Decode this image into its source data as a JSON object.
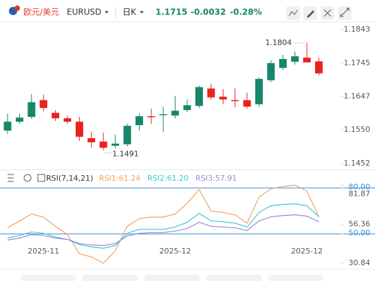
{
  "header": {
    "pair_name": "欧元/美元",
    "symbol": "EURUSD",
    "period": "日K",
    "price": "1.1715",
    "change": "-0.0032",
    "change_pct": "-0.28%"
  },
  "chart_data": [
    {
      "type": "candlestick",
      "open": [
        1.1548,
        1.1574,
        1.1588,
        1.1637,
        1.16,
        1.1584,
        1.1574,
        1.1526,
        1.1516,
        1.1504,
        1.1508,
        1.1564,
        1.159,
        1.1594,
        1.1592,
        1.1608,
        1.162,
        1.1671,
        1.1647,
        1.1637,
        1.1637,
        1.1625,
        1.1695,
        1.1731,
        1.1749,
        1.1761,
        1.175
      ],
      "high": [
        1.1598,
        1.1598,
        1.1655,
        1.1653,
        1.1608,
        1.1592,
        1.1588,
        1.1544,
        1.1542,
        1.1536,
        1.1568,
        1.1598,
        1.1612,
        1.1618,
        1.1649,
        1.1639,
        1.1679,
        1.1685,
        1.1669,
        1.1671,
        1.1659,
        1.1703,
        1.1753,
        1.1769,
        1.1779,
        1.1804,
        1.1761
      ],
      "low": [
        1.1538,
        1.1568,
        1.1582,
        1.1604,
        1.1576,
        1.1568,
        1.1518,
        1.1498,
        1.1491,
        1.1496,
        1.1502,
        1.1548,
        1.1568,
        1.1544,
        1.1584,
        1.1602,
        1.1614,
        1.1639,
        1.1625,
        1.1616,
        1.1612,
        1.1618,
        1.1689,
        1.1725,
        1.1741,
        1.1751,
        1.1709
      ],
      "close": [
        1.1574,
        1.1586,
        1.1631,
        1.1614,
        1.1584,
        1.1574,
        1.153,
        1.1514,
        1.1498,
        1.151,
        1.1562,
        1.159,
        1.1588,
        1.1596,
        1.1606,
        1.1622,
        1.1675,
        1.1645,
        1.1639,
        1.1635,
        1.1618,
        1.1699,
        1.1745,
        1.1757,
        1.1765,
        1.1747,
        1.1715
      ],
      "up_color": "#17866b",
      "down_color": "#e8231f",
      "ylim": [
        1.1438,
        1.1869
      ],
      "yticks": [
        1.1452,
        {
          "value": 1.155,
          "label": "1.1550"
        },
        1.1647,
        1.1745,
        1.1843
      ],
      "high_label": "1.1804",
      "low_label": "1.1491"
    },
    {
      "type": "line",
      "title": "RSI(7,14,21)",
      "categories": [
        null,
        null,
        null,
        "2025-11",
        null,
        null,
        null,
        null,
        null,
        null,
        null,
        null,
        null,
        null,
        "2025-12",
        null,
        null,
        null,
        null,
        null,
        null,
        null,
        null,
        null,
        null,
        "2025-12",
        null
      ],
      "series": [
        {
          "name": "RSI1:61.24",
          "color": "#f5a25d",
          "values": [
            54,
            58.5,
            63,
            61,
            55,
            49.5,
            37,
            35,
            30.84,
            39,
            55,
            60,
            61,
            61,
            63,
            70,
            79,
            65,
            64,
            62.5,
            57,
            74,
            79.5,
            81,
            81.87,
            78,
            61.24
          ]
        },
        {
          "name": "RSI2:61.20",
          "color": "#3cc6d6",
          "values": [
            47.3,
            49,
            51.3,
            50.4,
            48,
            46.4,
            43,
            41.5,
            40.6,
            42.4,
            50.4,
            53,
            53,
            53,
            54.5,
            57.6,
            63.4,
            58.5,
            58,
            57,
            54.5,
            64,
            68.4,
            69.3,
            69.7,
            68.4,
            61.2
          ]
        },
        {
          "name": "RSI3:57.91",
          "color": "#9a87d8",
          "values": [
            46,
            47.3,
            49.6,
            49,
            47.3,
            46.4,
            43.7,
            42.8,
            42.4,
            43.7,
            48.7,
            50.4,
            50.9,
            50.9,
            51.8,
            53.6,
            57.6,
            55,
            54.5,
            54,
            52.2,
            58.5,
            61.2,
            62,
            62.5,
            61.6,
            57.91
          ]
        }
      ],
      "ylim": [
        30,
        83
      ],
      "yticks": [
        30.84,
        {
          "value": 50,
          "label": "50.00"
        },
        56.36,
        {
          "value": 80,
          "label": "80.00"
        },
        81.87
      ],
      "hlines": [
        50,
        80
      ],
      "hline_color": "#3b8fd9"
    }
  ]
}
